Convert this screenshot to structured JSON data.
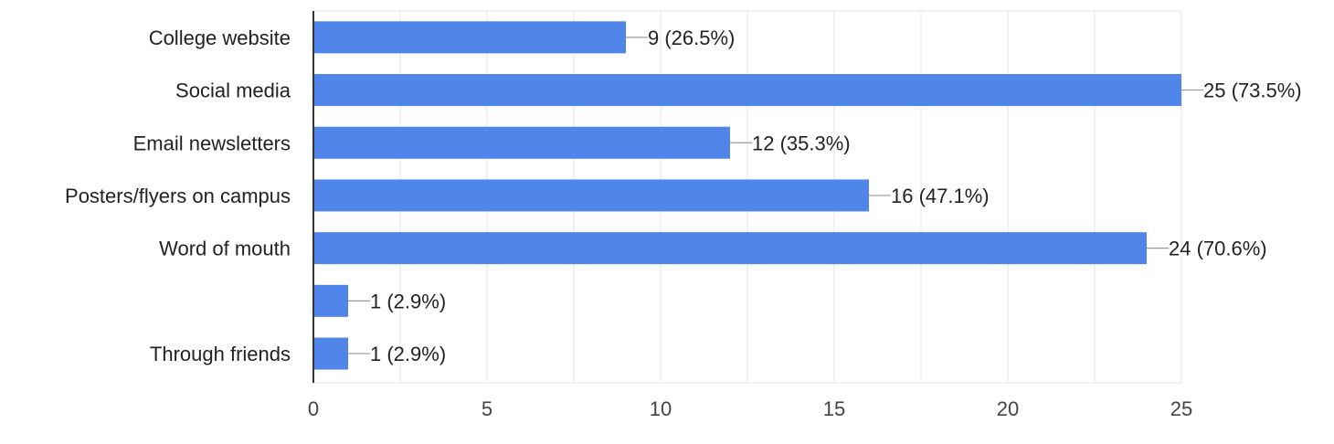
{
  "chart_data": {
    "type": "bar",
    "orientation": "horizontal",
    "categories": [
      "College website",
      "Social media",
      "Email newsletters",
      "Posters/flyers on campus",
      "Word of mouth",
      "",
      "Through friends"
    ],
    "values": [
      9,
      25,
      12,
      16,
      24,
      1,
      1
    ],
    "data_labels": [
      "9 (26.5%)",
      "25 (73.5%)",
      "12 (35.3%)",
      "16 (47.1%)",
      "24 (70.6%)",
      "1 (2.9%)",
      "1 (2.9%)"
    ],
    "x_ticks": [
      "0",
      "5",
      "10",
      "15",
      "20",
      "25"
    ],
    "xlim": [
      0,
      25
    ],
    "grid": true,
    "legend": "none",
    "colors": {
      "bar": "#5085ea",
      "gridline": "#e6e6e6",
      "axis": "#333333",
      "connector": "#999999"
    }
  }
}
